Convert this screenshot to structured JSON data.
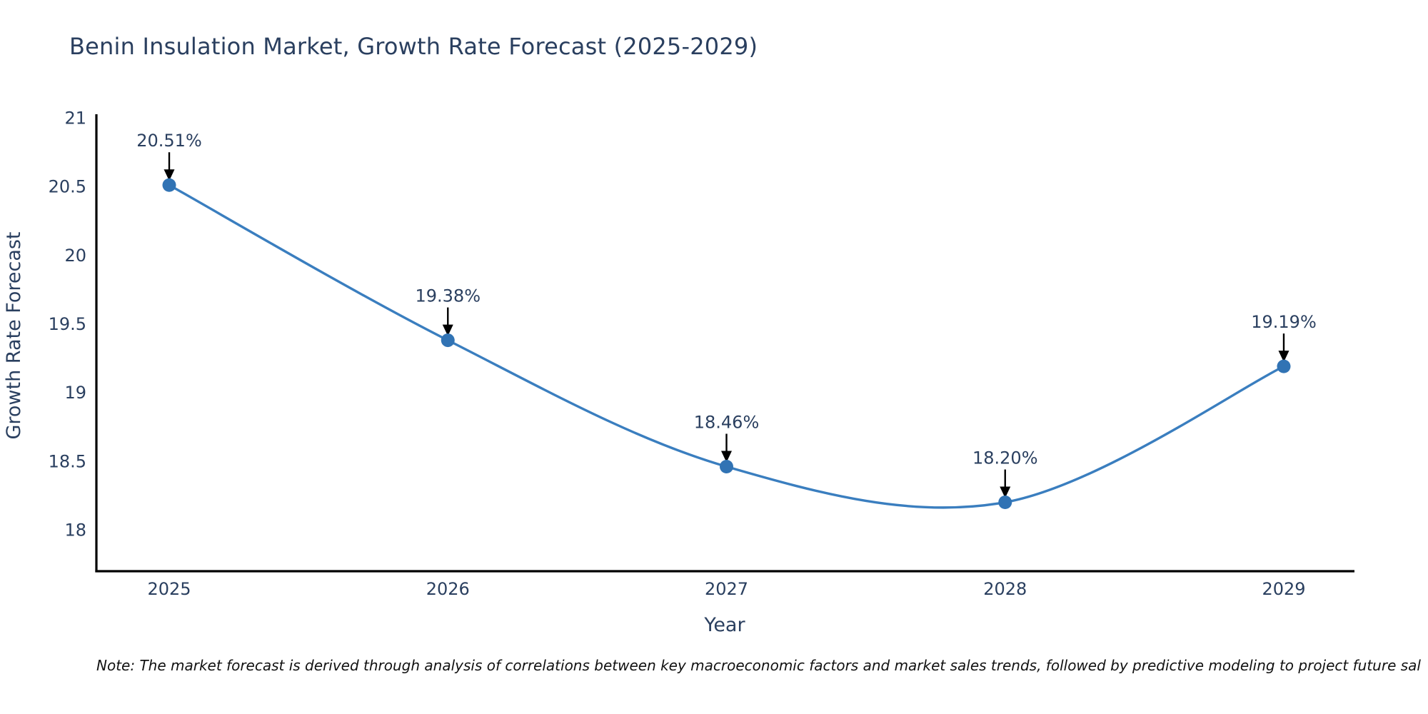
{
  "header": {
    "title": "Benin Insulation Market, Growth Rate Forecast (2025-2029)"
  },
  "footnote": {
    "text": "Note: The market forecast is derived through analysis of correlations between key macroeconomic factors and market sales trends, followed by predictive modeling to project future sal"
  },
  "chart_data": {
    "type": "line",
    "title": "Benin Insulation Market, Growth Rate Forecast (2025-2029)",
    "xlabel": "Year",
    "ylabel": "Growth Rate Forecast",
    "categories": [
      "2025",
      "2026",
      "2027",
      "2028",
      "2029"
    ],
    "values": [
      20.51,
      19.38,
      18.46,
      18.2,
      19.19
    ],
    "point_labels": [
      "20.51%",
      "19.38%",
      "18.46%",
      "18.20%",
      "19.19%"
    ],
    "ytick_labels": [
      "21",
      "20.5",
      "20",
      "19.5",
      "19",
      "18.5",
      "18"
    ],
    "ytick_values": [
      21,
      20.5,
      20,
      19.5,
      19,
      18.5,
      18
    ],
    "ylim": [
      17.7,
      21
    ],
    "line_shape": "spline",
    "grid": false,
    "legend_position": "none",
    "colors": {
      "line": "#3a7ebf",
      "marker": "#3173b4",
      "axis": "#000000",
      "tick_text": "#2a3f5f",
      "annotation_text": "#2a3f5f",
      "annotation_arrow": "#000000",
      "title_text": "#2a3f5f",
      "note_text": "#111111",
      "background": "#ffffff"
    }
  }
}
